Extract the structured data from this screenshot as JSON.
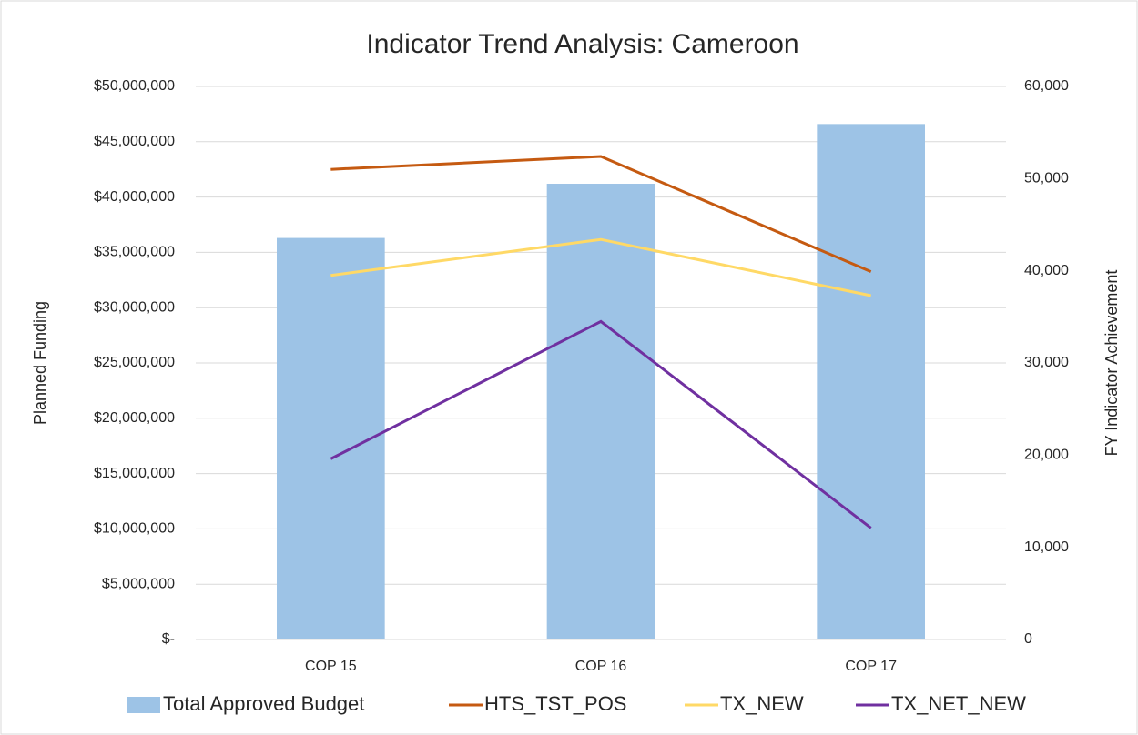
{
  "chart_data": {
    "type": "bar",
    "title": "Indicator Trend Analysis: Cameroon",
    "y_label": "Planned Funding",
    "y2_label": "FY Indicator Achievement",
    "categories": [
      "COP 15",
      "COP 16",
      "COP 17"
    ],
    "series": [
      {
        "name": "Total Approved Budget",
        "type": "bar",
        "axis": "y",
        "color": "#9dc3e6",
        "values": [
          36300000,
          41200000,
          46600000
        ]
      },
      {
        "name": "HTS_TST_POS",
        "type": "line",
        "axis": "y2",
        "color": "#c55a11",
        "values": [
          51000,
          52400,
          39900
        ]
      },
      {
        "name": "TX_NEW",
        "type": "line",
        "axis": "y2",
        "color": "#ffd966",
        "values": [
          39500,
          43400,
          37300
        ]
      },
      {
        "name": "TX_NET_NEW",
        "type": "line",
        "axis": "y2",
        "color": "#7030a0",
        "values": [
          19600,
          34500,
          12100
        ]
      }
    ],
    "ylim": [
      0,
      50000000
    ],
    "yticks": [
      {
        "value": 0,
        "label": "$-"
      },
      {
        "value": 5000000,
        "label": "$5,000,000"
      },
      {
        "value": 10000000,
        "label": "$10,000,000"
      },
      {
        "value": 15000000,
        "label": "$15,000,000"
      },
      {
        "value": 20000000,
        "label": "$20,000,000"
      },
      {
        "value": 25000000,
        "label": "$25,000,000"
      },
      {
        "value": 30000000,
        "label": "$30,000,000"
      },
      {
        "value": 35000000,
        "label": "$35,000,000"
      },
      {
        "value": 40000000,
        "label": "$40,000,000"
      },
      {
        "value": 45000000,
        "label": "$45,000,000"
      },
      {
        "value": 50000000,
        "label": "$50,000,000"
      }
    ],
    "y2lim": [
      0,
      60000
    ],
    "y2ticks": [
      0,
      {
        "value": 10000,
        "label": "10,000"
      },
      {
        "value": 20000,
        "label": "20,000"
      },
      {
        "value": 30000,
        "label": "30,000"
      },
      {
        "value": 40000,
        "label": "40,000"
      },
      {
        "value": 50000,
        "label": "50,000"
      },
      {
        "value": 60000,
        "label": "60,000"
      }
    ],
    "grid": true,
    "legend": "bottom"
  }
}
